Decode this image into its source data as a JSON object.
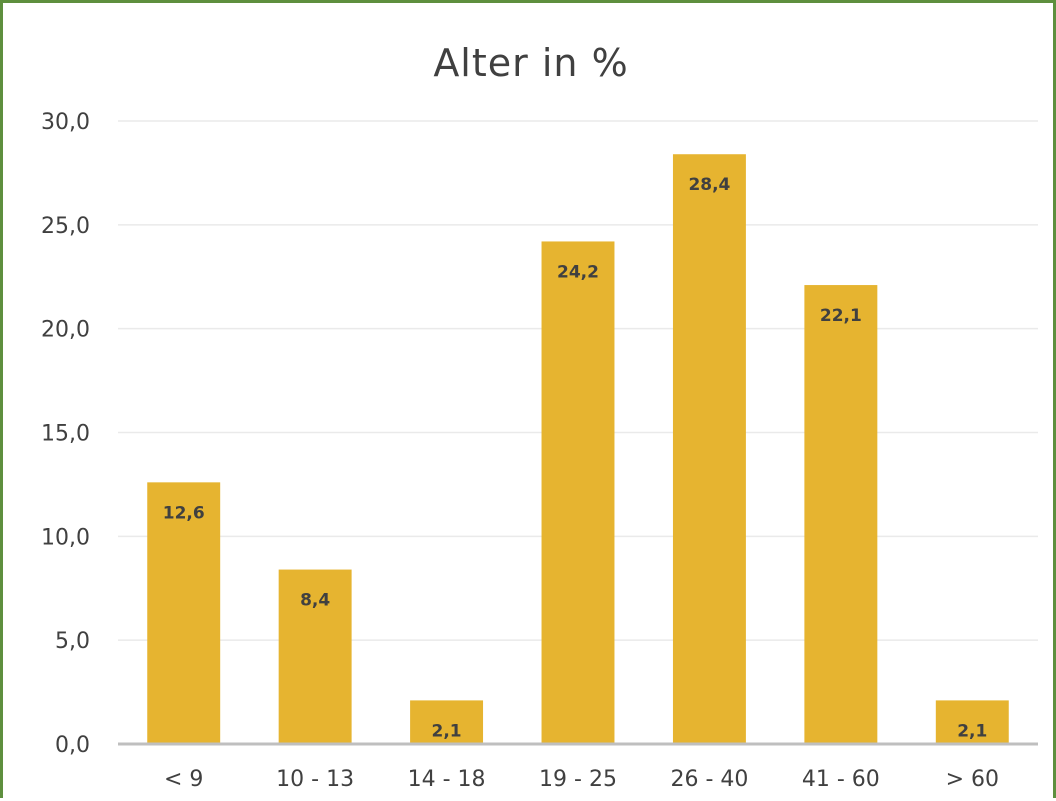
{
  "chart_data": {
    "type": "bar",
    "title": "Alter in %",
    "categories": [
      "< 9",
      "10 - 13",
      "14 - 18",
      "19 - 25",
      "26 - 40",
      "41 - 60",
      "> 60"
    ],
    "values": [
      12.6,
      8.4,
      2.1,
      24.2,
      28.4,
      22.1,
      2.1
    ],
    "value_labels": [
      "12,6",
      "8,4",
      "2,1",
      "24,2",
      "28,4",
      "22,1",
      "2,1"
    ],
    "y_ticks": [
      0,
      5,
      10,
      15,
      20,
      25,
      30
    ],
    "y_tick_labels": [
      "0,0",
      "5,0",
      "10,0",
      "15,0",
      "20,0",
      "25,0",
      "30,0"
    ],
    "ylim": [
      0,
      30
    ],
    "grid": true,
    "bar_color": "#e6b430",
    "grid_color": "#eaeaea",
    "axis_color": "#bfbfbf",
    "text_color": "#404040",
    "frame_color": "#5e8f3e"
  }
}
